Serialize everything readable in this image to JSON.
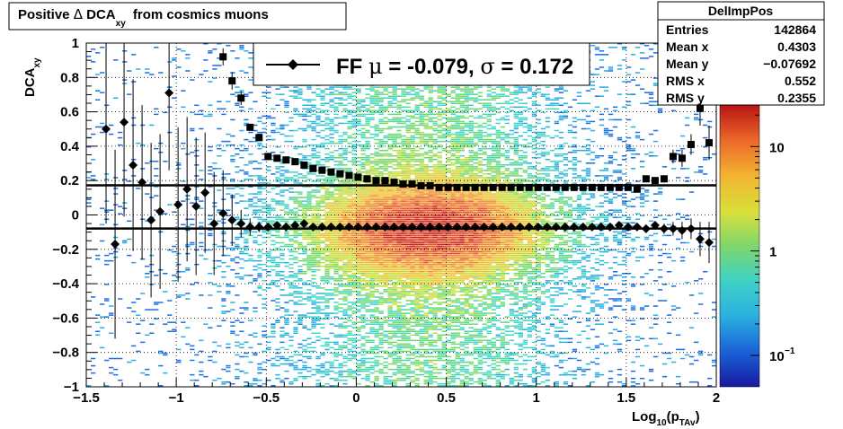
{
  "chart_data": {
    "type": "heatmap",
    "title_prefix": "Positive ",
    "title_delta": "Δ",
    "title_quantity": " DCA",
    "title_sub": "xy",
    "title_suffix": " from cosmics muons",
    "ylabel_main": "DCA",
    "ylabel_sub": "xy",
    "xlabel_main": "Log",
    "xlabel_sub1": "10",
    "xlabel_mid": "(p",
    "xlabel_sub2": "TAv",
    "xlabel_end": ")",
    "xlim": [
      -1.5,
      2
    ],
    "ylim": [
      -1,
      1
    ],
    "x_ticks": [
      -1.5,
      -1,
      -0.5,
      0,
      0.5,
      1,
      1.5,
      2
    ],
    "x_tick_labels": [
      "−1.5",
      "−1",
      "−0.5",
      "0",
      "0.5",
      "1",
      "1.5",
      "2"
    ],
    "y_ticks": [
      -1,
      -0.8,
      -0.6,
      -0.4,
      -0.2,
      0,
      0.2,
      0.4,
      0.6,
      0.8,
      1
    ],
    "y_tick_labels": [
      "−1",
      "−0.8",
      "−0.6",
      "−0.4",
      "−0.2",
      "0",
      "0.2",
      "0.4",
      "0.6",
      "0.8",
      "1"
    ],
    "grid": true,
    "colorbar": {
      "scale": "log",
      "tick_labels": [
        "10",
        "1",
        "10",
        "−1"
      ],
      "tick_values": [
        10,
        1,
        0.1
      ]
    },
    "stats_box": {
      "title": "DelImpPos",
      "rows": [
        {
          "key": "Entries",
          "value": "142864"
        },
        {
          "key": "Mean x",
          "value": "0.4303"
        },
        {
          "key": "Mean y",
          "value": "−0.07692"
        },
        {
          "key": "RMS x",
          "value": "0.552"
        },
        {
          "key": "RMS y",
          "value": "0.2355"
        }
      ]
    },
    "legend": {
      "text_prefix": "FF ",
      "mu": "μ",
      "text_mid": " = -0.079, ",
      "sigma": "σ",
      "text_end": " =   0.172"
    },
    "fit_lines": [
      -0.079,
      0.172
    ],
    "series": [
      {
        "marker": "diamond",
        "x": [
          -1.39,
          -1.34,
          -1.29,
          -1.24,
          -1.19,
          -1.14,
          -1.09,
          -1.04,
          -0.99,
          -0.94,
          -0.89,
          -0.84,
          -0.79,
          -0.74,
          -0.69,
          -0.64,
          -0.59,
          -0.54,
          -0.49,
          -0.44,
          -0.39,
          -0.34,
          -0.29,
          -0.24,
          -0.19,
          -0.14,
          -0.09,
          -0.04,
          0.01,
          0.06,
          0.11,
          0.16,
          0.21,
          0.26,
          0.31,
          0.36,
          0.41,
          0.46,
          0.51,
          0.56,
          0.61,
          0.66,
          0.71,
          0.76,
          0.81,
          0.86,
          0.91,
          0.96,
          1.01,
          1.06,
          1.11,
          1.16,
          1.21,
          1.26,
          1.31,
          1.36,
          1.41,
          1.46,
          1.51,
          1.56,
          1.61,
          1.66,
          1.71,
          1.76,
          1.81,
          1.86,
          1.91,
          1.96
        ],
        "y": [
          0.5,
          -0.17,
          0.54,
          0.29,
          0.19,
          -0.03,
          0.02,
          0.71,
          0.06,
          0.15,
          0.05,
          0.13,
          -0.05,
          0.01,
          -0.03,
          -0.05,
          -0.07,
          -0.07,
          -0.07,
          -0.06,
          -0.07,
          -0.06,
          -0.05,
          -0.07,
          -0.07,
          -0.07,
          -0.07,
          -0.07,
          -0.07,
          -0.07,
          -0.07,
          -0.07,
          -0.07,
          -0.07,
          -0.07,
          -0.07,
          -0.07,
          -0.07,
          -0.07,
          -0.07,
          -0.07,
          -0.07,
          -0.07,
          -0.07,
          -0.07,
          -0.07,
          -0.07,
          -0.07,
          -0.07,
          -0.07,
          -0.07,
          -0.07,
          -0.07,
          -0.07,
          -0.07,
          -0.07,
          -0.07,
          -0.06,
          -0.07,
          -0.07,
          -0.08,
          -0.06,
          -0.08,
          -0.08,
          -0.09,
          -0.08,
          -0.14,
          -0.16
        ],
        "err": [
          0.55,
          0.55,
          0.55,
          0.5,
          0.45,
          0.45,
          0.45,
          0.45,
          0.45,
          0.42,
          0.4,
          0.35,
          0.3,
          0.25,
          0.15,
          0.08,
          0.05,
          0.03,
          0.02,
          0.02,
          0.01,
          0.01,
          0.01,
          0.01,
          0.01,
          0.01,
          0.01,
          0.01,
          0.01,
          0.01,
          0.01,
          0.01,
          0.01,
          0.01,
          0.01,
          0.01,
          0.01,
          0.01,
          0.01,
          0.01,
          0.01,
          0.01,
          0.01,
          0.01,
          0.01,
          0.01,
          0.01,
          0.01,
          0.01,
          0.01,
          0.01,
          0.01,
          0.01,
          0.01,
          0.01,
          0.01,
          0.01,
          0.02,
          0.02,
          0.02,
          0.02,
          0.02,
          0.03,
          0.04,
          0.05,
          0.06,
          0.1,
          0.12
        ]
      },
      {
        "marker": "square",
        "x": [
          -0.74,
          -0.69,
          -0.64,
          -0.59,
          -0.54,
          -0.49,
          -0.44,
          -0.39,
          -0.34,
          -0.29,
          -0.24,
          -0.19,
          -0.14,
          -0.09,
          -0.04,
          0.01,
          0.06,
          0.11,
          0.16,
          0.21,
          0.26,
          0.31,
          0.36,
          0.41,
          0.46,
          0.51,
          0.56,
          0.61,
          0.66,
          0.71,
          0.76,
          0.81,
          0.86,
          0.91,
          0.96,
          1.01,
          1.06,
          1.11,
          1.16,
          1.21,
          1.26,
          1.31,
          1.36,
          1.41,
          1.46,
          1.51,
          1.56,
          1.61,
          1.66,
          1.71,
          1.76,
          1.81,
          1.86,
          1.91,
          1.96
        ],
        "y": [
          0.92,
          0.78,
          0.68,
          0.51,
          0.45,
          0.34,
          0.33,
          0.32,
          0.31,
          0.29,
          0.27,
          0.26,
          0.25,
          0.24,
          0.23,
          0.22,
          0.21,
          0.2,
          0.2,
          0.19,
          0.18,
          0.18,
          0.17,
          0.17,
          0.16,
          0.16,
          0.16,
          0.16,
          0.16,
          0.16,
          0.16,
          0.16,
          0.16,
          0.16,
          0.16,
          0.16,
          0.16,
          0.16,
          0.16,
          0.16,
          0.16,
          0.16,
          0.16,
          0.16,
          0.16,
          0.16,
          0.15,
          0.21,
          0.2,
          0.21,
          0.34,
          0.33,
          0.41,
          0.62,
          0.42
        ],
        "err": [
          0.05,
          0.05,
          0.04,
          0.02,
          0.02,
          0.01,
          0.01,
          0.01,
          0.01,
          0.01,
          0.01,
          0.01,
          0.01,
          0.01,
          0.01,
          0.01,
          0.01,
          0.01,
          0.01,
          0.01,
          0.01,
          0.01,
          0.01,
          0.01,
          0.01,
          0.01,
          0.01,
          0.01,
          0.01,
          0.01,
          0.01,
          0.01,
          0.01,
          0.01,
          0.01,
          0.01,
          0.01,
          0.01,
          0.01,
          0.01,
          0.01,
          0.01,
          0.01,
          0.01,
          0.01,
          0.01,
          0.01,
          0.02,
          0.02,
          0.02,
          0.04,
          0.05,
          0.06,
          0.1,
          0.1
        ]
      }
    ]
  }
}
